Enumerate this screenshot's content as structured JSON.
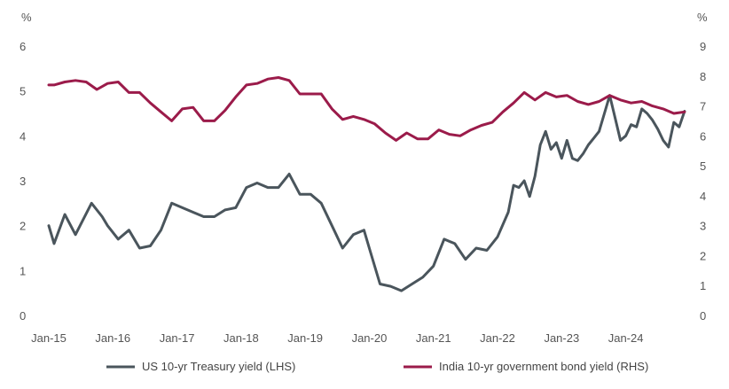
{
  "chart_data": {
    "type": "line",
    "left_axis": {
      "unit": "%",
      "ylim": [
        0,
        6
      ],
      "ticks": [
        "0",
        "1",
        "2",
        "3",
        "4",
        "5",
        "6"
      ]
    },
    "right_axis": {
      "unit": "%",
      "ylim": [
        0,
        9
      ],
      "ticks": [
        "0",
        "1",
        "2",
        "3",
        "4",
        "5",
        "6",
        "7",
        "8",
        "9"
      ]
    },
    "x_ticks": [
      "Jan-15",
      "Jan-16",
      "Jan-17",
      "Jan-18",
      "Jan-19",
      "Jan-20",
      "Jan-21",
      "Jan-22",
      "Jan-23",
      "Jan-24"
    ],
    "grid": false,
    "legend": "bottom",
    "series": [
      {
        "name": "US 10-yr Treasury yield (LHS)",
        "axis": "left",
        "color": "#4a555c",
        "points": [
          [
            "2015-01",
            2.0
          ],
          [
            "2015-02",
            1.6
          ],
          [
            "2015-04",
            2.25
          ],
          [
            "2015-06",
            1.8
          ],
          [
            "2015-09",
            2.5
          ],
          [
            "2015-11",
            2.2
          ],
          [
            "2015-12",
            2.0
          ],
          [
            "2016-02",
            1.7
          ],
          [
            "2016-04",
            1.9
          ],
          [
            "2016-06",
            1.5
          ],
          [
            "2016-08",
            1.55
          ],
          [
            "2016-10",
            1.9
          ],
          [
            "2016-12",
            2.5
          ],
          [
            "2017-02",
            2.4
          ],
          [
            "2017-04",
            2.3
          ],
          [
            "2017-06",
            2.2
          ],
          [
            "2017-08",
            2.2
          ],
          [
            "2017-10",
            2.35
          ],
          [
            "2017-12",
            2.4
          ],
          [
            "2018-02",
            2.85
          ],
          [
            "2018-04",
            2.95
          ],
          [
            "2018-06",
            2.85
          ],
          [
            "2018-08",
            2.85
          ],
          [
            "2018-10",
            3.15
          ],
          [
            "2018-12",
            2.7
          ],
          [
            "2019-02",
            2.7
          ],
          [
            "2019-04",
            2.5
          ],
          [
            "2019-06",
            2.0
          ],
          [
            "2019-08",
            1.5
          ],
          [
            "2019-10",
            1.8
          ],
          [
            "2019-12",
            1.9
          ],
          [
            "2020-01",
            1.5
          ],
          [
            "2020-03",
            0.7
          ],
          [
            "2020-05",
            0.65
          ],
          [
            "2020-07",
            0.55
          ],
          [
            "2020-09",
            0.7
          ],
          [
            "2020-11",
            0.85
          ],
          [
            "2021-01",
            1.1
          ],
          [
            "2021-03",
            1.7
          ],
          [
            "2021-05",
            1.6
          ],
          [
            "2021-07",
            1.25
          ],
          [
            "2021-09",
            1.5
          ],
          [
            "2021-11",
            1.45
          ],
          [
            "2022-01",
            1.75
          ],
          [
            "2022-03",
            2.3
          ],
          [
            "2022-04",
            2.9
          ],
          [
            "2022-05",
            2.85
          ],
          [
            "2022-06",
            3.0
          ],
          [
            "2022-07",
            2.65
          ],
          [
            "2022-08",
            3.1
          ],
          [
            "2022-09",
            3.8
          ],
          [
            "2022-10",
            4.1
          ],
          [
            "2022-11",
            3.7
          ],
          [
            "2022-12",
            3.85
          ],
          [
            "2023-01",
            3.5
          ],
          [
            "2023-02",
            3.9
          ],
          [
            "2023-03",
            3.5
          ],
          [
            "2023-04",
            3.45
          ],
          [
            "2023-05",
            3.6
          ],
          [
            "2023-06",
            3.8
          ],
          [
            "2023-07",
            3.95
          ],
          [
            "2023-08",
            4.1
          ],
          [
            "2023-09",
            4.5
          ],
          [
            "2023-10",
            4.9
          ],
          [
            "2023-11",
            4.4
          ],
          [
            "2023-12",
            3.9
          ],
          [
            "2024-01",
            4.0
          ],
          [
            "2024-02",
            4.25
          ],
          [
            "2024-03",
            4.2
          ],
          [
            "2024-04",
            4.6
          ],
          [
            "2024-05",
            4.5
          ],
          [
            "2024-06",
            4.35
          ],
          [
            "2024-07",
            4.15
          ],
          [
            "2024-08",
            3.9
          ],
          [
            "2024-09",
            3.75
          ],
          [
            "2024-10",
            4.3
          ],
          [
            "2024-11",
            4.2
          ],
          [
            "2024-12",
            4.55
          ]
        ]
      },
      {
        "name": "India 10-yr government bond yield (RHS)",
        "axis": "right",
        "color": "#9b1b4a",
        "points": [
          [
            "2015-01",
            7.7
          ],
          [
            "2015-02",
            7.7
          ],
          [
            "2015-04",
            7.8
          ],
          [
            "2015-06",
            7.85
          ],
          [
            "2015-08",
            7.8
          ],
          [
            "2015-10",
            7.55
          ],
          [
            "2015-12",
            7.75
          ],
          [
            "2016-02",
            7.8
          ],
          [
            "2016-04",
            7.45
          ],
          [
            "2016-06",
            7.45
          ],
          [
            "2016-08",
            7.1
          ],
          [
            "2016-10",
            6.8
          ],
          [
            "2016-12",
            6.5
          ],
          [
            "2017-02",
            6.9
          ],
          [
            "2017-04",
            6.95
          ],
          [
            "2017-06",
            6.5
          ],
          [
            "2017-08",
            6.5
          ],
          [
            "2017-10",
            6.85
          ],
          [
            "2017-12",
            7.3
          ],
          [
            "2018-02",
            7.7
          ],
          [
            "2018-04",
            7.75
          ],
          [
            "2018-06",
            7.9
          ],
          [
            "2018-08",
            7.95
          ],
          [
            "2018-10",
            7.85
          ],
          [
            "2018-12",
            7.4
          ],
          [
            "2019-02",
            7.4
          ],
          [
            "2019-04",
            7.4
          ],
          [
            "2019-06",
            6.9
          ],
          [
            "2019-08",
            6.55
          ],
          [
            "2019-10",
            6.65
          ],
          [
            "2019-12",
            6.55
          ],
          [
            "2020-02",
            6.4
          ],
          [
            "2020-04",
            6.1
          ],
          [
            "2020-06",
            5.85
          ],
          [
            "2020-08",
            6.1
          ],
          [
            "2020-10",
            5.9
          ],
          [
            "2020-12",
            5.9
          ],
          [
            "2021-02",
            6.2
          ],
          [
            "2021-04",
            6.05
          ],
          [
            "2021-06",
            6.0
          ],
          [
            "2021-08",
            6.2
          ],
          [
            "2021-10",
            6.35
          ],
          [
            "2021-12",
            6.45
          ],
          [
            "2022-02",
            6.8
          ],
          [
            "2022-04",
            7.1
          ],
          [
            "2022-06",
            7.45
          ],
          [
            "2022-08",
            7.2
          ],
          [
            "2022-10",
            7.45
          ],
          [
            "2022-12",
            7.3
          ],
          [
            "2023-02",
            7.35
          ],
          [
            "2023-04",
            7.15
          ],
          [
            "2023-06",
            7.05
          ],
          [
            "2023-08",
            7.15
          ],
          [
            "2023-10",
            7.35
          ],
          [
            "2023-12",
            7.2
          ],
          [
            "2024-02",
            7.1
          ],
          [
            "2024-04",
            7.15
          ],
          [
            "2024-06",
            7.0
          ],
          [
            "2024-08",
            6.9
          ],
          [
            "2024-10",
            6.75
          ],
          [
            "2024-12",
            6.8
          ]
        ]
      }
    ]
  }
}
